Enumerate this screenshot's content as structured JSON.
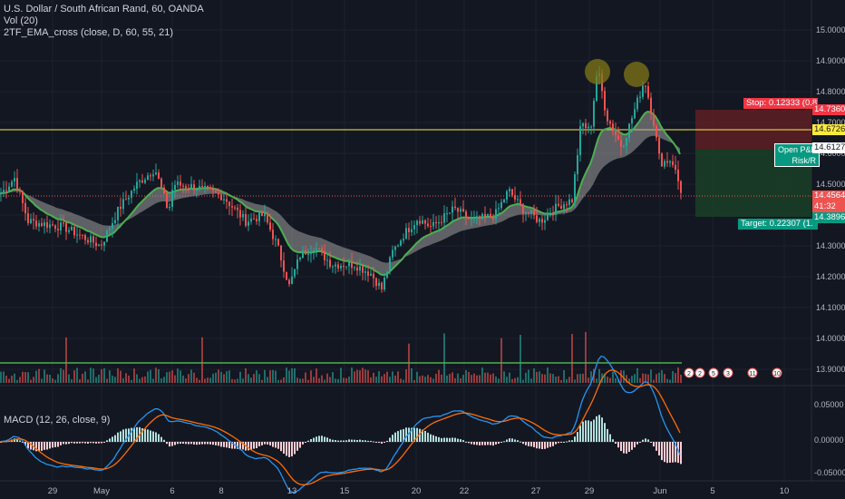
{
  "header": {
    "symbol_line": "U.S. Dollar / South African Rand, 60, OANDA",
    "indicator_1": "Vol (20)",
    "indicator_2": "2TF_EMA_cross (close, D, 60, 55, 21)",
    "macd_label": "MACD (12, 26, close, 9)"
  },
  "price_axis": {
    "ticks": [
      "15.00000",
      "14.90000",
      "14.80000",
      "14.70000",
      "14.60000",
      "14.50000",
      "14.40000",
      "14.30000",
      "14.20000",
      "14.10000",
      "14.00000",
      "13.90000"
    ],
    "tags": {
      "stop_price": "14.73603",
      "entry_price": "14.67260",
      "open_price": "14.61270",
      "last_price": "14.45644",
      "countdown": "41:32",
      "target_price": "14.38963"
    }
  },
  "macd_axis": {
    "ticks": [
      "0.05000",
      "0.00000",
      "-0.05000"
    ]
  },
  "time_axis": {
    "labels": [
      "29",
      "May",
      "6",
      "8",
      "13",
      "15",
      "20",
      "22",
      "27",
      "29",
      "Jun",
      "5",
      "10"
    ]
  },
  "position": {
    "stop_label": "Stop: 0.12333 (0.8",
    "target_label": "Target: 0.22307 (1.",
    "open_label_1": "Open P&L",
    "open_label_2": "Risk/R"
  },
  "event_badges": [
    "2",
    "2",
    "5",
    "3",
    "11",
    "10"
  ],
  "colors": {
    "background": "#131722",
    "up": "#26a69a",
    "down": "#ef5350",
    "ema_fast": "#4caf50",
    "cloud": "#9e9e9e",
    "horizontal_level": "#ffeb3b",
    "stop_zone": "#5a1e24",
    "target_zone": "#1a3d26",
    "macd_line": "#2196f3",
    "signal_line": "#ff6d00"
  }
}
